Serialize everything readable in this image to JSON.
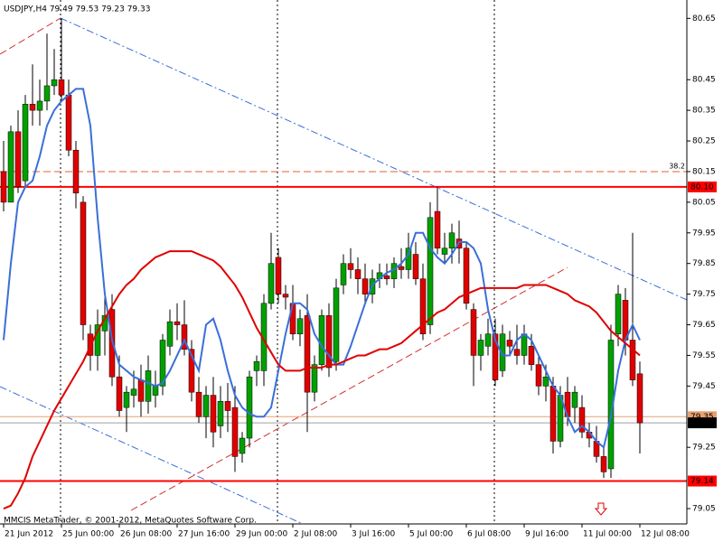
{
  "chart_data": {
    "type": "candlestick",
    "info": "USDJPY,H4  79.49 79.53 79.23 79.33",
    "footer": "MMCIS MetaTrader, © 2001-2012, MetaQuotes Software Corp.",
    "ylim": [
      79.0,
      80.71
    ],
    "yticks": [
      80.65,
      80.45,
      80.35,
      80.25,
      80.15,
      80.05,
      79.95,
      79.85,
      79.75,
      79.65,
      79.55,
      79.45,
      79.25,
      79.05
    ],
    "up_color": "#00a000",
    "down_color": "#e00000",
    "categories": [
      "21 Jun 2012",
      null,
      null,
      null,
      null,
      null,
      null,
      null,
      "25 Jun 00:00",
      null,
      null,
      null,
      null,
      null,
      null,
      null,
      "26 Jun 08:00",
      null,
      null,
      null,
      null,
      null,
      null,
      null,
      "27 Jun 16:00",
      null,
      null,
      null,
      null,
      null,
      null,
      null,
      "29 Jun 00:00",
      null,
      null,
      null,
      null,
      null,
      null,
      null,
      "2 Jul 08:00",
      null,
      null,
      null,
      null,
      null,
      null,
      null,
      "3 Jul 16:00",
      null,
      null,
      null,
      null,
      null,
      null,
      null,
      "5 Jul 00:00",
      null,
      null,
      null,
      null,
      null,
      null,
      null,
      "6 Jul 08:00",
      null,
      null,
      null,
      null,
      null,
      null,
      null,
      "9 Jul 16:00",
      null,
      null,
      null,
      null,
      null,
      null,
      null,
      "11 Jul 00:00",
      null,
      null,
      null,
      null,
      null,
      null,
      null,
      "12 Jul 08:00"
    ],
    "ohlc": [
      [
        80.15,
        80.25,
        80.02,
        80.05
      ],
      [
        80.05,
        80.3,
        80.05,
        80.28
      ],
      [
        80.28,
        80.35,
        80.08,
        80.1
      ],
      [
        80.12,
        80.4,
        80.1,
        80.37
      ],
      [
        80.37,
        80.5,
        80.3,
        80.35
      ],
      [
        80.35,
        80.45,
        80.3,
        80.38
      ],
      [
        80.38,
        80.6,
        80.35,
        80.43
      ],
      [
        80.43,
        80.55,
        80.4,
        80.45
      ],
      [
        80.45,
        80.65,
        80.38,
        80.4
      ],
      [
        80.4,
        80.45,
        80.2,
        80.22
      ],
      [
        80.22,
        80.25,
        80.03,
        80.08
      ],
      [
        80.05,
        80.07,
        79.6,
        79.65
      ],
      [
        79.62,
        79.65,
        79.5,
        79.55
      ],
      [
        79.55,
        79.7,
        79.5,
        79.65
      ],
      [
        79.63,
        79.75,
        79.55,
        79.68
      ],
      [
        79.7,
        79.75,
        79.45,
        79.48
      ],
      [
        79.48,
        79.55,
        79.35,
        79.37
      ],
      [
        79.38,
        79.45,
        79.3,
        79.43
      ],
      [
        79.42,
        79.5,
        79.38,
        79.44
      ],
      [
        79.47,
        79.52,
        79.35,
        79.4
      ],
      [
        79.4,
        79.55,
        79.36,
        79.5
      ],
      [
        79.42,
        79.5,
        79.38,
        79.45
      ],
      [
        79.45,
        79.62,
        79.42,
        79.6
      ],
      [
        79.58,
        79.7,
        79.55,
        79.66
      ],
      [
        79.66,
        79.72,
        79.6,
        79.65
      ],
      [
        79.65,
        79.73,
        79.55,
        79.57
      ],
      [
        79.57,
        79.6,
        79.4,
        79.43
      ],
      [
        79.43,
        79.48,
        79.33,
        79.35
      ],
      [
        79.35,
        79.45,
        79.28,
        79.42
      ],
      [
        79.42,
        79.48,
        79.25,
        79.3
      ],
      [
        79.32,
        79.45,
        79.28,
        79.4
      ],
      [
        79.4,
        79.46,
        79.3,
        79.37
      ],
      [
        79.38,
        79.45,
        79.17,
        79.22
      ],
      [
        79.23,
        79.3,
        79.2,
        79.28
      ],
      [
        79.28,
        79.5,
        79.25,
        79.48
      ],
      [
        79.5,
        79.55,
        79.45,
        79.53
      ],
      [
        79.5,
        79.75,
        79.45,
        79.72
      ],
      [
        79.72,
        79.95,
        79.7,
        79.85
      ],
      [
        79.87,
        79.9,
        79.72,
        79.75
      ],
      [
        79.75,
        79.78,
        79.7,
        79.74
      ],
      [
        79.72,
        79.78,
        79.6,
        79.62
      ],
      [
        79.62,
        79.7,
        79.58,
        79.67
      ],
      [
        79.68,
        79.75,
        79.3,
        79.43
      ],
      [
        79.43,
        79.55,
        79.4,
        79.52
      ],
      [
        79.52,
        79.7,
        79.5,
        79.68
      ],
      [
        79.68,
        79.72,
        79.48,
        79.51
      ],
      [
        79.53,
        79.8,
        79.5,
        79.77
      ],
      [
        79.78,
        79.88,
        79.75,
        79.85
      ],
      [
        79.85,
        79.9,
        79.8,
        79.83
      ],
      [
        79.83,
        79.87,
        79.75,
        79.8
      ],
      [
        79.8,
        79.85,
        79.72,
        79.75
      ],
      [
        79.75,
        79.83,
        79.72,
        79.8
      ],
      [
        79.8,
        79.85,
        79.77,
        79.82
      ],
      [
        79.81,
        79.85,
        79.78,
        79.8
      ],
      [
        79.8,
        79.87,
        79.77,
        79.85
      ],
      [
        79.84,
        79.9,
        79.8,
        79.83
      ],
      [
        79.83,
        79.95,
        79.8,
        79.9
      ],
      [
        79.88,
        79.92,
        79.78,
        79.8
      ],
      [
        79.8,
        79.85,
        79.6,
        79.62
      ],
      [
        79.65,
        80.05,
        79.62,
        80.0
      ],
      [
        80.02,
        80.1,
        79.88,
        79.9
      ],
      [
        79.88,
        79.95,
        79.85,
        79.9
      ],
      [
        79.9,
        79.98,
        79.85,
        79.95
      ],
      [
        79.93,
        79.99,
        79.85,
        79.9
      ],
      [
        79.9,
        79.92,
        79.7,
        79.72
      ],
      [
        79.7,
        79.72,
        79.45,
        79.55
      ],
      [
        79.55,
        79.62,
        79.5,
        79.6
      ],
      [
        79.58,
        79.67,
        79.55,
        79.62
      ],
      [
        79.62,
        79.67,
        79.45,
        79.47
      ],
      [
        79.5,
        79.65,
        79.48,
        79.62
      ],
      [
        79.6,
        79.63,
        79.55,
        79.58
      ],
      [
        79.57,
        79.65,
        79.52,
        79.55
      ],
      [
        79.55,
        79.65,
        79.52,
        79.62
      ],
      [
        79.58,
        79.62,
        79.5,
        79.52
      ],
      [
        79.52,
        79.55,
        79.42,
        79.45
      ],
      [
        79.45,
        79.52,
        79.4,
        79.48
      ],
      [
        79.45,
        79.48,
        79.23,
        79.27
      ],
      [
        79.27,
        79.45,
        79.25,
        79.42
      ],
      [
        79.43,
        79.48,
        79.32,
        79.35
      ],
      [
        79.38,
        79.45,
        79.33,
        79.43
      ],
      [
        79.38,
        79.42,
        79.28,
        79.3
      ],
      [
        79.3,
        79.33,
        79.25,
        79.28
      ],
      [
        79.27,
        79.32,
        79.2,
        79.22
      ],
      [
        79.22,
        79.25,
        79.15,
        79.17
      ],
      [
        79.18,
        79.65,
        79.15,
        79.6
      ],
      [
        79.62,
        79.78,
        79.58,
        79.75
      ],
      [
        79.73,
        79.77,
        79.55,
        79.6
      ],
      [
        79.6,
        79.95,
        79.45,
        79.47
      ],
      [
        79.49,
        79.53,
        79.23,
        79.33
      ]
    ],
    "lines": [
      {
        "color": "#3a6fd8",
        "values": [
          79.6,
          79.85,
          80.05,
          80.1,
          80.12,
          80.2,
          80.3,
          80.35,
          80.38,
          80.4,
          80.42,
          80.42,
          80.3,
          80.0,
          79.75,
          79.6,
          79.52,
          79.5,
          79.48,
          79.47,
          79.46,
          79.45,
          79.46,
          79.5,
          79.55,
          79.6,
          79.55,
          79.5,
          79.65,
          79.67,
          79.6,
          79.5,
          79.42,
          79.38,
          79.36,
          79.35,
          79.35,
          79.38,
          79.5,
          79.62,
          79.72,
          79.72,
          79.7,
          79.62,
          79.58,
          79.55,
          79.52,
          79.52,
          79.58,
          79.65,
          79.72,
          79.78,
          79.8,
          79.82,
          79.83,
          79.85,
          79.88,
          79.95,
          79.95,
          79.9,
          79.87,
          79.85,
          79.88,
          79.92,
          79.92,
          79.9,
          79.85,
          79.7,
          79.6,
          79.55,
          79.55,
          79.6,
          79.62,
          79.6,
          79.55,
          79.5,
          79.45,
          79.42,
          79.35,
          79.3,
          79.32,
          79.3,
          79.27,
          79.25,
          79.35,
          79.5,
          79.6,
          79.65,
          79.6
        ]
      },
      {
        "color": "#e00000",
        "values": [
          79.05,
          79.06,
          79.1,
          79.15,
          79.22,
          79.27,
          79.32,
          79.37,
          79.41,
          79.45,
          79.49,
          79.53,
          79.58,
          79.63,
          79.67,
          79.71,
          79.75,
          79.78,
          79.8,
          79.83,
          79.85,
          79.87,
          79.88,
          79.89,
          79.89,
          79.89,
          79.89,
          79.88,
          79.87,
          79.86,
          79.84,
          79.81,
          79.78,
          79.74,
          79.69,
          79.64,
          79.6,
          79.56,
          79.52,
          79.5,
          79.5,
          79.5,
          79.51,
          79.51,
          79.51,
          79.52,
          79.52,
          79.53,
          79.54,
          79.55,
          79.55,
          79.56,
          79.57,
          79.57,
          79.58,
          79.59,
          79.61,
          79.63,
          79.65,
          79.67,
          79.69,
          79.7,
          79.72,
          79.74,
          79.75,
          79.76,
          79.77,
          79.77,
          79.77,
          79.77,
          79.77,
          79.77,
          79.78,
          79.78,
          79.78,
          79.78,
          79.77,
          79.76,
          79.75,
          79.73,
          79.72,
          79.71,
          79.69,
          79.66,
          79.63,
          79.61,
          79.59,
          79.57,
          79.55
        ]
      }
    ],
    "levels": [
      {
        "value": 80.1,
        "label": "80.10",
        "color": "#ff0000",
        "bg": "#ff0000",
        "fg": "#ffffff",
        "width": 2
      },
      {
        "value": 79.35,
        "label": "79.35",
        "color": "#e8a070",
        "bg": "#e8a070",
        "fg": "#ffffff",
        "width": 1
      },
      {
        "value": 79.33,
        "label": "79.33",
        "color": "#a0a0a0",
        "bg": "#000000",
        "fg": "#ffffff",
        "width": 1
      },
      {
        "value": 79.14,
        "label": "79.14",
        "color": "#ff0000",
        "bg": "#ff0000",
        "fg": "#ffffff",
        "width": 2
      }
    ],
    "fibo": {
      "value": 80.15,
      "label": "38.2",
      "color": "#e06030"
    }
  }
}
